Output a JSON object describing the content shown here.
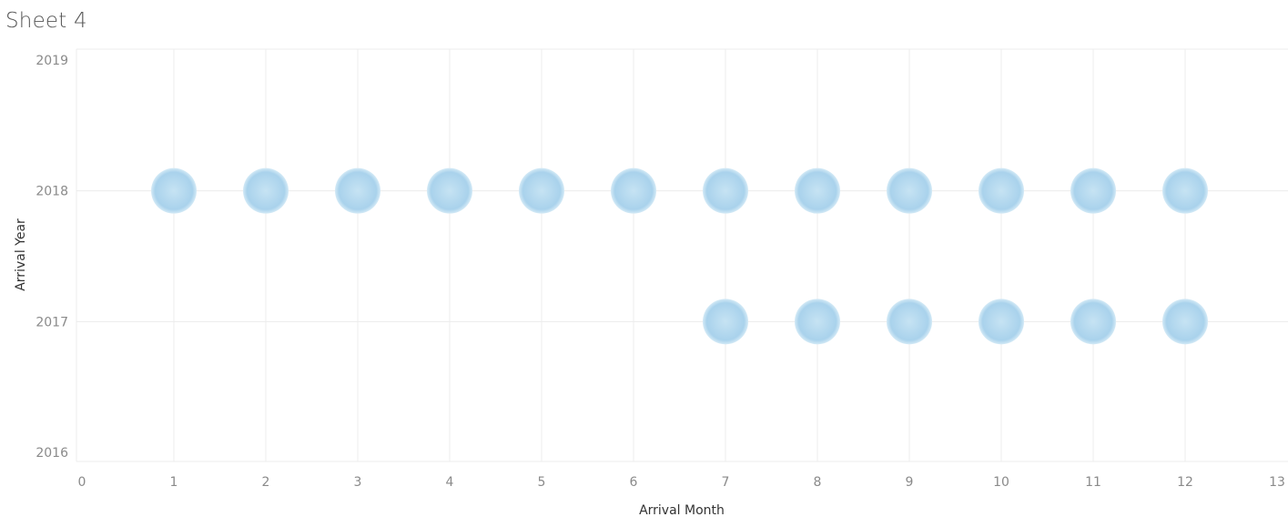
{
  "sheet": {
    "title": "Sheet 4"
  },
  "colors": {
    "mark_center": "#c6e3f3",
    "mark_mid": "#a9d2ec",
    "mark_edge": "#d4eaf6",
    "gridline": "#ececec",
    "tick_text": "#8a8a8a",
    "axis_title_text": "#333333"
  },
  "chart_data": {
    "type": "scatter",
    "title": "Sheet 4",
    "xlabel": "Arrival Month",
    "ylabel": "Arrival Year",
    "xlim": [
      0,
      13
    ],
    "ylim": [
      2016,
      2019
    ],
    "x_ticks": [
      "0",
      "1",
      "2",
      "3",
      "4",
      "5",
      "6",
      "7",
      "8",
      "9",
      "10",
      "11",
      "12",
      "13"
    ],
    "y_ticks": [
      "2016",
      "2017",
      "2018",
      "2019"
    ],
    "grid": true,
    "legend": "none",
    "points": [
      {
        "x": 1,
        "y": 2018
      },
      {
        "x": 2,
        "y": 2018
      },
      {
        "x": 3,
        "y": 2018
      },
      {
        "x": 4,
        "y": 2018
      },
      {
        "x": 5,
        "y": 2018
      },
      {
        "x": 6,
        "y": 2018
      },
      {
        "x": 7,
        "y": 2018
      },
      {
        "x": 8,
        "y": 2018
      },
      {
        "x": 9,
        "y": 2018
      },
      {
        "x": 10,
        "y": 2018
      },
      {
        "x": 11,
        "y": 2018
      },
      {
        "x": 12,
        "y": 2018
      },
      {
        "x": 7,
        "y": 2017
      },
      {
        "x": 8,
        "y": 2017
      },
      {
        "x": 9,
        "y": 2017
      },
      {
        "x": 10,
        "y": 2017
      },
      {
        "x": 11,
        "y": 2017
      },
      {
        "x": 12,
        "y": 2017
      }
    ]
  }
}
